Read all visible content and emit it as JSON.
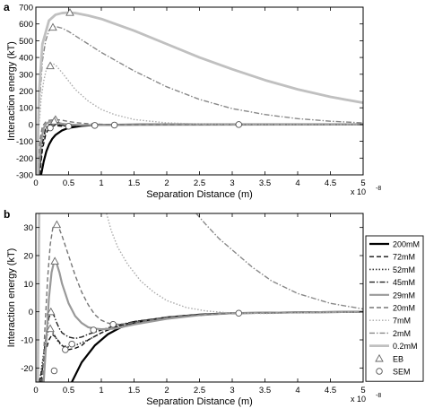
{
  "figure": {
    "panel_a_label": "a",
    "panel_b_label": "b"
  },
  "colors": {
    "200mM": "#000000",
    "72mM": "#111111",
    "52mM": "#333333",
    "45mM": "#222222",
    "29mM": "#999999",
    "20mM": "#777777",
    "7mM": "#aaaaaa",
    "2mM": "#888888",
    "0.2mM": "#c0c0c0"
  },
  "legend": {
    "entries": [
      {
        "label": "200mM",
        "dash": "",
        "width": 2.2
      },
      {
        "label": "72mM",
        "dash": "5,3",
        "width": 1.4
      },
      {
        "label": "52mM",
        "dash": "1.5,2",
        "width": 1.6
      },
      {
        "label": "45mM",
        "dash": "6,2,1.5,2",
        "width": 1.4
      },
      {
        "label": "29mM",
        "dash": "",
        "width": 2.2
      },
      {
        "label": "20mM",
        "dash": "5,3",
        "width": 1.4
      },
      {
        "label": "7mM",
        "dash": "1.5,2",
        "width": 1.4
      },
      {
        "label": "2mM",
        "dash": "6,2,1.5,2",
        "width": 1.4
      },
      {
        "label": "0.2mM",
        "dash": "",
        "width": 2.8
      }
    ],
    "marker_entries": [
      {
        "label": "EB",
        "marker": "triangle"
      },
      {
        "label": "SEM",
        "marker": "circle"
      }
    ]
  },
  "chart_data": [
    {
      "panel": "a",
      "type": "line",
      "xlabel": "Separation Distance (m)",
      "ylabel": "Interaction energy (kT)",
      "x_multiplier": "x 10",
      "x_multiplier_exp": "-8",
      "xlim": [
        0,
        5
      ],
      "ylim": [
        -300,
        700
      ],
      "xticks": [
        "0",
        "0.5",
        "1",
        "1.5",
        "2",
        "2.5",
        "3",
        "3.5",
        "4",
        "4.5",
        "5"
      ],
      "yticks": [
        "-300",
        "-200",
        "-100",
        "0",
        "100",
        "200",
        "300",
        "400",
        "500",
        "600",
        "700"
      ],
      "grid": false,
      "series": [
        {
          "key": "200mM",
          "x": [
            0.08,
            0.12,
            0.16,
            0.2,
            0.25,
            0.3,
            0.4,
            0.5,
            0.7,
            0.9,
            1.2,
            1.6,
            2,
            3,
            5
          ],
          "y": [
            -300,
            -220,
            -160,
            -120,
            -85,
            -62,
            -35,
            -20,
            -8,
            -3,
            -1,
            0,
            0,
            0,
            0
          ]
        },
        {
          "key": "72mM",
          "x": [
            0.06,
            0.1,
            0.15,
            0.2,
            0.25,
            0.3,
            0.4,
            0.5,
            0.7,
            0.9,
            1.2,
            2,
            5
          ],
          "y": [
            -300,
            -150,
            -60,
            -20,
            -8,
            -6,
            -10,
            -8,
            -4,
            -2,
            -1,
            0,
            0
          ]
        },
        {
          "key": "52mM",
          "x": [
            0.05,
            0.1,
            0.15,
            0.2,
            0.25,
            0.3,
            0.4,
            0.5,
            0.7,
            0.9,
            1.2,
            2,
            5
          ],
          "y": [
            -300,
            -120,
            -30,
            -5,
            0,
            -2,
            -8,
            -7,
            -4,
            -2,
            -1,
            0,
            0
          ]
        },
        {
          "key": "45mM",
          "x": [
            0.05,
            0.1,
            0.15,
            0.2,
            0.25,
            0.3,
            0.4,
            0.5,
            0.7,
            0.9,
            1.2,
            2,
            5
          ],
          "y": [
            -300,
            -110,
            -20,
            0,
            5,
            2,
            -4,
            -5,
            -3,
            -2,
            -1,
            0,
            0
          ]
        },
        {
          "key": "29mM",
          "x": [
            0.04,
            0.08,
            0.12,
            0.16,
            0.2,
            0.25,
            0.3,
            0.4,
            0.5,
            0.7,
            0.9,
            1.2,
            2,
            5
          ],
          "y": [
            -300,
            -100,
            -20,
            5,
            15,
            18,
            14,
            5,
            0,
            -3,
            -3,
            -2,
            -1,
            0
          ]
        },
        {
          "key": "20mM",
          "x": [
            0.03,
            0.06,
            0.1,
            0.15,
            0.2,
            0.3,
            0.4,
            0.5,
            0.6,
            0.8,
            1.0,
            1.2,
            1.5,
            2,
            5
          ],
          "y": [
            -300,
            -100,
            -10,
            15,
            25,
            30,
            26,
            18,
            12,
            5,
            2,
            0,
            -1,
            -1,
            0
          ]
        },
        {
          "key": "7mM",
          "x": [
            0.02,
            0.05,
            0.08,
            0.12,
            0.16,
            0.2,
            0.25,
            0.3,
            0.4,
            0.5,
            0.6,
            0.8,
            1,
            1.2,
            1.5,
            2,
            2.5,
            3,
            5
          ],
          "y": [
            -300,
            0,
            150,
            260,
            330,
            355,
            365,
            355,
            310,
            260,
            210,
            140,
            90,
            60,
            30,
            10,
            3,
            1,
            0
          ]
        },
        {
          "key": "2mM",
          "x": [
            0.02,
            0.05,
            0.1,
            0.15,
            0.2,
            0.25,
            0.3,
            0.4,
            0.5,
            0.6,
            0.8,
            1,
            1.5,
            2,
            2.5,
            3,
            3.5,
            4,
            4.5,
            5
          ],
          "y": [
            -300,
            100,
            380,
            500,
            560,
            580,
            585,
            575,
            555,
            530,
            480,
            430,
            320,
            225,
            150,
            95,
            60,
            35,
            20,
            10
          ]
        },
        {
          "key": "0.2mM",
          "x": [
            0.02,
            0.05,
            0.1,
            0.2,
            0.3,
            0.4,
            0.5,
            0.6,
            0.8,
            1,
            1.5,
            2,
            2.5,
            3,
            3.5,
            4,
            4.5,
            5
          ],
          "y": [
            -300,
            200,
            480,
            620,
            655,
            665,
            668,
            665,
            650,
            630,
            560,
            480,
            400,
            330,
            265,
            210,
            165,
            130
          ]
        }
      ],
      "markers": {
        "EB": [
          {
            "x": 0.22,
            "y": 350
          },
          {
            "x": 0.26,
            "y": 580
          },
          {
            "x": 0.52,
            "y": 668
          },
          {
            "x": 0.3,
            "y": 30
          },
          {
            "x": 0.28,
            "y": 20
          }
        ],
        "SEM": [
          {
            "x": 0.22,
            "y": -20
          },
          {
            "x": 0.5,
            "y": -10
          },
          {
            "x": 0.9,
            "y": -5
          },
          {
            "x": 1.2,
            "y": -3
          },
          {
            "x": 3.1,
            "y": 0
          }
        ]
      }
    },
    {
      "panel": "b",
      "type": "line",
      "xlabel": "Separation Distance (m)",
      "ylabel": "Interaction energy (kT)",
      "x_multiplier": "x 10",
      "x_multiplier_exp": "-8",
      "xlim": [
        0,
        5
      ],
      "ylim": [
        -25,
        35
      ],
      "xticks": [
        "0",
        "0.5",
        "1",
        "1.5",
        "2",
        "2.5",
        "3",
        "3.5",
        "4",
        "4.5",
        "5"
      ],
      "yticks": [
        "-20",
        "-10",
        "0",
        "10",
        "20",
        "30"
      ],
      "grid": false,
      "series": [
        {
          "key": "200mM",
          "x": [
            0.55,
            0.7,
            0.9,
            1.1,
            1.3,
            1.6,
            2,
            2.5,
            3,
            4,
            5
          ],
          "y": [
            -25,
            -18,
            -12,
            -8,
            -5.5,
            -3.5,
            -2,
            -1,
            -0.5,
            -0.2,
            0
          ]
        },
        {
          "key": "72mM",
          "x": [
            0.05,
            0.1,
            0.15,
            0.2,
            0.25,
            0.3,
            0.4,
            0.5,
            0.6,
            0.7,
            0.8,
            1,
            1.2,
            1.5,
            2,
            3,
            5
          ],
          "y": [
            -25,
            -20,
            -14,
            -10,
            -8,
            -9,
            -12,
            -13.5,
            -13,
            -12,
            -10,
            -7.5,
            -5.5,
            -3.5,
            -2,
            -0.5,
            0
          ]
        },
        {
          "key": "52mM",
          "x": [
            0.06,
            0.1,
            0.15,
            0.2,
            0.25,
            0.3,
            0.35,
            0.4,
            0.5,
            0.6,
            0.7,
            0.8,
            1,
            1.2,
            1.5,
            2,
            3,
            5
          ],
          "y": [
            -25,
            -18,
            -10,
            -6,
            -7,
            -9,
            -11,
            -12,
            -12.5,
            -12,
            -11,
            -10,
            -7.5,
            -5.5,
            -3.5,
            -2,
            -0.5,
            0
          ]
        },
        {
          "key": "45mM",
          "x": [
            0.08,
            0.12,
            0.16,
            0.2,
            0.24,
            0.28,
            0.32,
            0.36,
            0.4,
            0.5,
            0.6,
            0.7,
            0.8,
            1,
            1.2,
            1.5,
            2,
            3,
            5
          ],
          "y": [
            -25,
            -16,
            -8,
            -2,
            0,
            -1.5,
            -4,
            -6,
            -7.5,
            -9,
            -9.5,
            -9,
            -8,
            -6.5,
            -5,
            -3.5,
            -2,
            -0.5,
            0
          ]
        },
        {
          "key": "29mM",
          "x": [
            0.12,
            0.16,
            0.2,
            0.24,
            0.28,
            0.32,
            0.36,
            0.4,
            0.5,
            0.6,
            0.7,
            0.8,
            0.9,
            1,
            1.2,
            1.5,
            2,
            2.5,
            3,
            4,
            5
          ],
          "y": [
            -25,
            -10,
            5,
            14,
            18,
            17,
            14,
            10,
            3,
            -1.5,
            -4,
            -5.5,
            -6,
            -6.2,
            -6,
            -4.5,
            -2.5,
            -1.2,
            -0.5,
            -0.2,
            0
          ]
        },
        {
          "key": "20mM",
          "x": [
            0.1,
            0.14,
            0.18,
            0.22,
            0.26,
            0.3,
            0.35,
            0.4,
            0.5,
            0.6,
            0.7,
            0.8,
            0.9,
            1,
            1.1,
            1.2,
            1.4,
            1.6,
            2,
            2.5,
            3,
            5
          ],
          "y": [
            -25,
            -5,
            12,
            24,
            30,
            31,
            30,
            27,
            20,
            13,
            7,
            2.5,
            -1,
            -3,
            -4,
            -4.5,
            -4.2,
            -3.5,
            -2,
            -1,
            -0.5,
            0
          ]
        },
        {
          "key": "7mM",
          "x": [
            1.08,
            1.15,
            1.25,
            1.4,
            1.6,
            1.8,
            2,
            2.3,
            2.6,
            3,
            3.5,
            4,
            4.5,
            5
          ],
          "y": [
            35,
            29,
            23,
            17,
            11,
            7,
            4,
            1.5,
            0.3,
            -0.5,
            -0.6,
            -0.4,
            -0.2,
            -0.1
          ]
        },
        {
          "key": "2mM",
          "x": [
            2.45,
            2.6,
            2.8,
            3,
            3.3,
            3.6,
            4,
            4.5,
            5
          ],
          "y": [
            35,
            31,
            26,
            22,
            16,
            11,
            6.5,
            3,
            1
          ]
        },
        {
          "key": "0.2mM",
          "x": [
            0.03,
            0.05
          ],
          "y": [
            -25,
            35
          ]
        }
      ],
      "markers": {
        "EB": [
          {
            "x": 0.22,
            "y": -6
          },
          {
            "x": 0.23,
            "y": 0
          },
          {
            "x": 0.29,
            "y": 18
          },
          {
            "x": 0.32,
            "y": 31
          }
        ],
        "SEM": [
          {
            "x": 0.28,
            "y": -21
          },
          {
            "x": 0.45,
            "y": -13.5
          },
          {
            "x": 0.55,
            "y": -11.5
          },
          {
            "x": 0.88,
            "y": -6.5
          },
          {
            "x": 1.18,
            "y": -4.5
          },
          {
            "x": 3.1,
            "y": -0.5
          }
        ]
      }
    }
  ]
}
